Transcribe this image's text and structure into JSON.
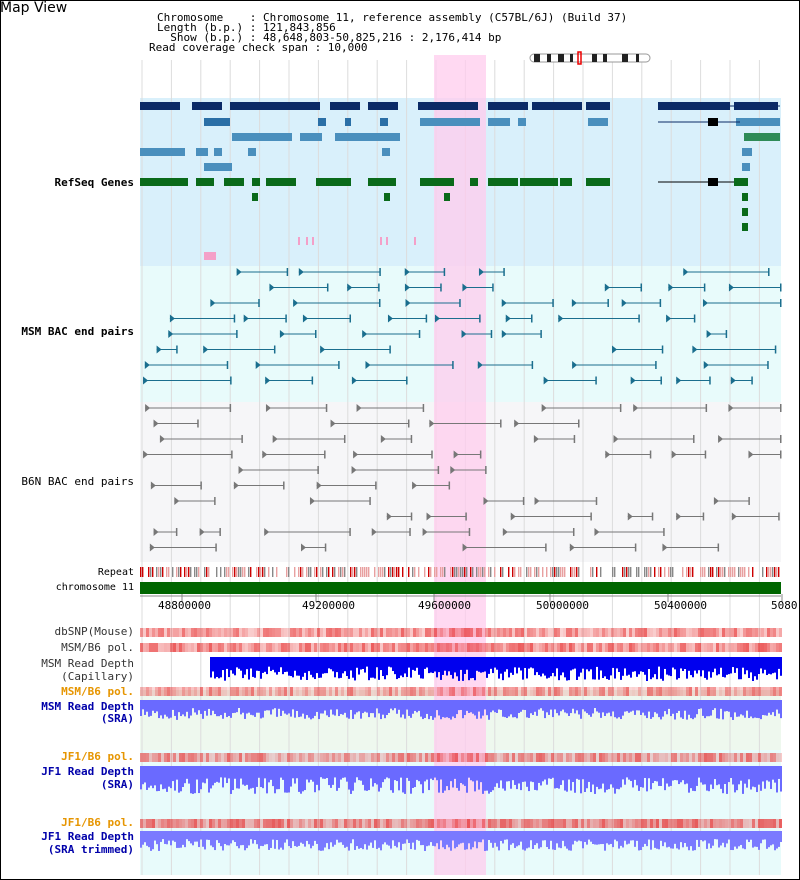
{
  "title": "Map View",
  "header": {
    "chromosome_line": "Chromosome    : Chromosome 11, reference assembly (C57BL/6J) (Build 37)",
    "length_line": "Length (b.p.) : 121,843,856",
    "show_line": "  Show (b.p.) : 48,648,803-50,825,216 : 2,176,414 bp",
    "coverage_line": "Read coverage check span : 10,000"
  },
  "tracks": {
    "refseq": "RefSeq Genes",
    "msm_bac": "MSM BAC end pairs",
    "b6n_bac": "B6N BAC end pairs",
    "repeat": "Repeat",
    "chromosome": "chromosome 11",
    "dbsnp": "dbSNP(Mouse)",
    "msm_b6_pol_1": "MSM/B6 pol.",
    "msm_read_depth_cap_1": "MSM Read Depth",
    "msm_read_depth_cap_2": "(Capillary)",
    "msm_b6_pol_2": "MSM/B6 pol.",
    "msm_read_depth_sra_1": "MSM Read Depth",
    "msm_read_depth_sra_2": "(SRA)",
    "jf1_b6_pol_1": "JF1/B6 pol.",
    "jf1_read_depth_sra_1": "JF1 Read Depth",
    "jf1_read_depth_sra_2": "(SRA)",
    "jf1_b6_pol_2": "JF1/B6 pol.",
    "jf1_read_depth_trim_1": "JF1 Read Depth",
    "jf1_read_depth_trim_2": "(SRA trimmed)"
  },
  "axis": {
    "ticks": [
      "48800000",
      "49200000",
      "49600000",
      "50000000",
      "50400000",
      "5080"
    ]
  },
  "colors": {
    "refseq_label": "#00008b",
    "msm_bac_label": "#006677",
    "b6n_bac_label": "#444444",
    "orange_label": "#e69500",
    "blue_label": "#0000aa",
    "highlight": "#ffccee",
    "chromosome_bar": "#006600"
  }
}
